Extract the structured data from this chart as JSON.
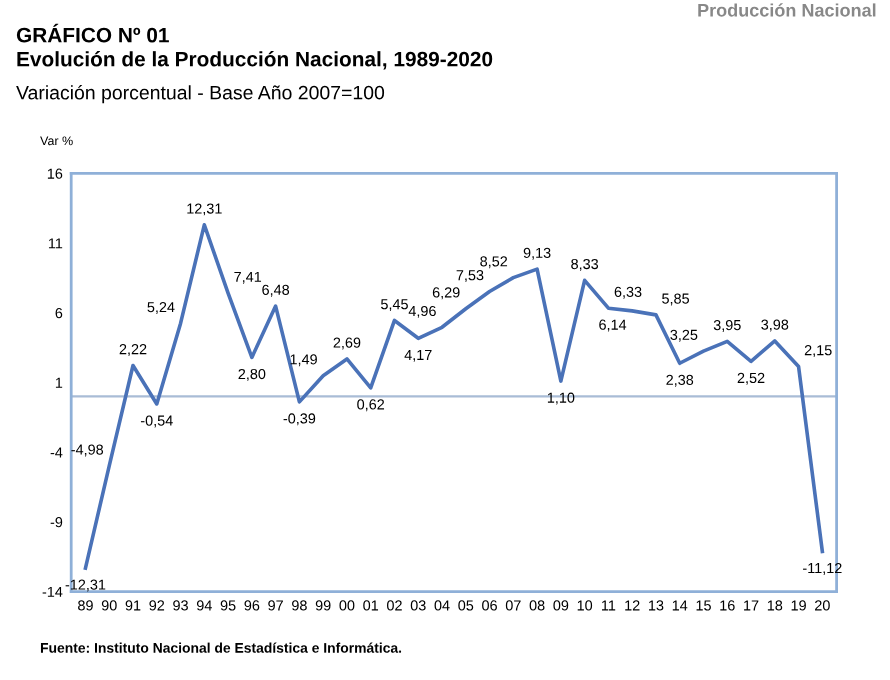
{
  "chart_data": {
    "type": "line",
    "title": "GRÁFICO Nº 01\nEvolución de la Producción Nacional, 1989-2020",
    "subtitle": "Variación porcentual - Base Año 2007=100",
    "ylabel": "Var %",
    "annotations": [
      "Producción Nacional",
      "Fuente: Instituto Nacional de Estadística e Informática."
    ],
    "categories": [
      "89",
      "90",
      "91",
      "92",
      "93",
      "94",
      "95",
      "96",
      "97",
      "98",
      "99",
      "00",
      "01",
      "02",
      "03",
      "04",
      "05",
      "06",
      "07",
      "08",
      "09",
      "10",
      "11",
      "12",
      "13",
      "14",
      "15",
      "16",
      "17",
      "18",
      "19",
      "20"
    ],
    "series": [
      {
        "color": "#4a72b8",
        "values": [
          -12.31,
          -4.98,
          2.22,
          -0.54,
          5.24,
          12.31,
          7.41,
          2.8,
          6.48,
          -0.39,
          1.49,
          2.69,
          0.62,
          5.45,
          4.17,
          4.96,
          6.29,
          7.53,
          8.52,
          9.13,
          1.1,
          8.33,
          6.33,
          6.14,
          5.85,
          2.38,
          3.25,
          3.95,
          2.52,
          3.98,
          2.15,
          -11.12
        ],
        "value_labels": [
          "-12,31",
          "-4,98",
          "2,22",
          "-0,54",
          "5,24",
          "12,31",
          "7,41",
          "2,80",
          "6,48",
          "-0,39",
          "1,49",
          "2,69",
          "0,62",
          "5,45",
          "4,17",
          "4,96",
          "6,29",
          "7,53",
          "8,52",
          "9,13",
          "1,10",
          "8,33",
          "6,33",
          "6,14",
          "5,85",
          "2,38",
          "3,25",
          "3,95",
          "2,52",
          "3,98",
          "2,15",
          "-11,12"
        ]
      }
    ],
    "ylim": [
      -14,
      16
    ],
    "yticks": [
      -14,
      -9,
      -4,
      1,
      6,
      11,
      16
    ],
    "ref_lines": [
      {
        "axis": "y",
        "value": 0,
        "color": "#a9bcd6"
      }
    ],
    "grid": false,
    "legend": false,
    "marker": "none",
    "line_style": "solid"
  }
}
